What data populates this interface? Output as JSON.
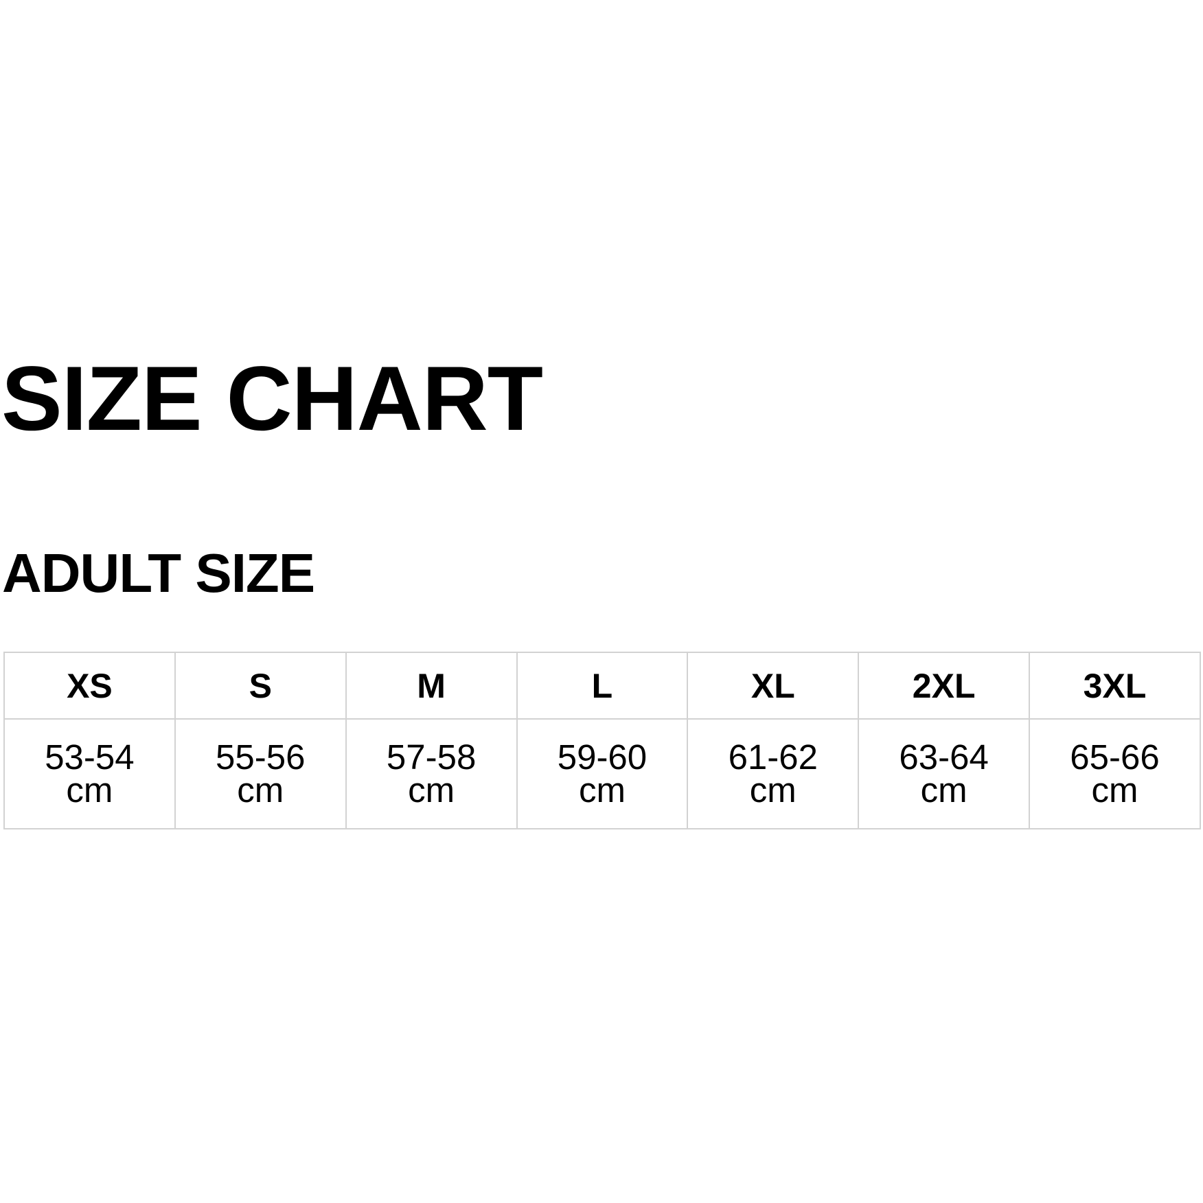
{
  "title": "SIZE CHART",
  "subtitle": "ADULT SIZE",
  "table": {
    "sizes": [
      "XS",
      "S",
      "M",
      "L",
      "XL",
      "2XL",
      "3XL"
    ],
    "ranges": [
      "53-54",
      "55-56",
      "57-58",
      "59-60",
      "61-62",
      "63-64",
      "65-66"
    ],
    "unit": "cm"
  },
  "colors": {
    "border": "#d2d2d2",
    "text": "#000000",
    "background": "#ffffff"
  }
}
